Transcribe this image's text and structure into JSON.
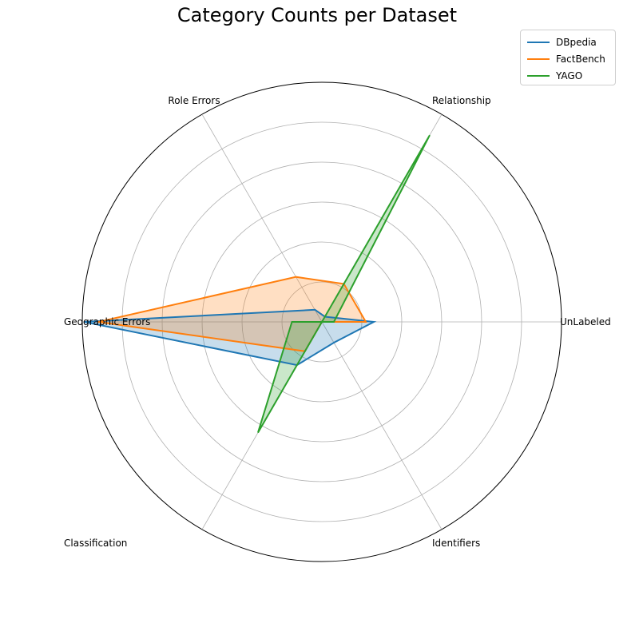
{
  "chart_data": {
    "type": "radar",
    "title": "Category Counts per Dataset",
    "categories": [
      "UnLabeled",
      "Relationship",
      "Role Errors",
      "Geographic Errors",
      "Classification",
      "Identifiers"
    ],
    "rmax": 6,
    "rings": [
      1,
      2,
      3,
      4,
      5,
      6
    ],
    "series": [
      {
        "name": "DBpedia",
        "color": "#1f77b4",
        "values": [
          1.3,
          0.15,
          0.35,
          5.95,
          1.25,
          0.6
        ]
      },
      {
        "name": "FactBench",
        "color": "#ff7f0e",
        "values": [
          1.1,
          1.1,
          1.3,
          5.6,
          0.85,
          0.0
        ]
      },
      {
        "name": "YAGO",
        "color": "#2ca02c",
        "values": [
          0.3,
          5.4,
          0.0,
          0.75,
          3.2,
          0.0
        ]
      }
    ],
    "legend_position": "top-right",
    "grid": true
  }
}
